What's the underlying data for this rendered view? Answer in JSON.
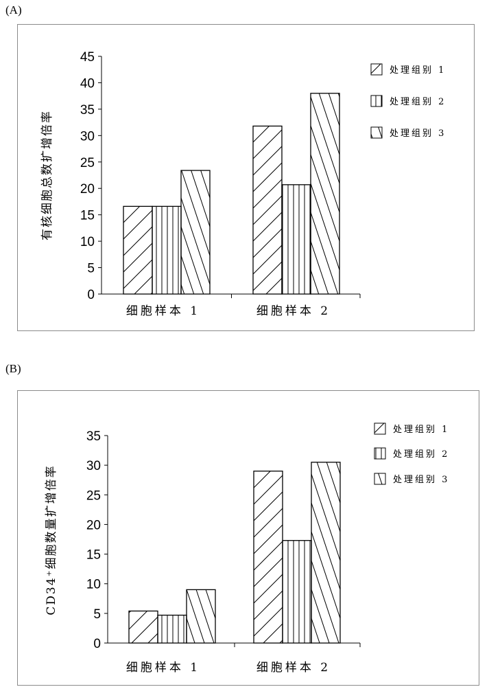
{
  "chart_data": [
    {
      "panel_label": "(A)",
      "type": "bar",
      "ylabel": "有核细胞总数扩增倍率",
      "ylim": [
        0,
        45
      ],
      "yticks": [
        0,
        5,
        10,
        15,
        20,
        25,
        30,
        35,
        40,
        45
      ],
      "categories": [
        "细胞样本 1",
        "细胞样本 2"
      ],
      "series": [
        {
          "name": "处理组别 1",
          "pattern": "diag-right",
          "values": [
            16.6,
            31.8
          ]
        },
        {
          "name": "处理组别 2",
          "pattern": "vertical",
          "values": [
            16.6,
            20.7
          ]
        },
        {
          "name": "处理组别 3",
          "pattern": "diag-left",
          "values": [
            23.4,
            38.0
          ]
        }
      ],
      "legend": "right",
      "grid": false
    },
    {
      "panel_label": "(B)",
      "type": "bar",
      "ylabel": "CD34⁺细胞数量扩增倍率",
      "ylim": [
        0,
        35
      ],
      "yticks": [
        0,
        5,
        10,
        15,
        20,
        25,
        30,
        35
      ],
      "categories": [
        "细胞样本 1",
        "细胞样本 2"
      ],
      "series": [
        {
          "name": "处理组别 1",
          "pattern": "diag-right",
          "values": [
            5.4,
            29.0
          ]
        },
        {
          "name": "处理组别 2",
          "pattern": "vertical",
          "values": [
            4.7,
            17.3
          ]
        },
        {
          "name": "处理组别 3",
          "pattern": "diag-left",
          "values": [
            9.0,
            30.5
          ]
        }
      ],
      "legend": "right",
      "grid": false
    }
  ]
}
